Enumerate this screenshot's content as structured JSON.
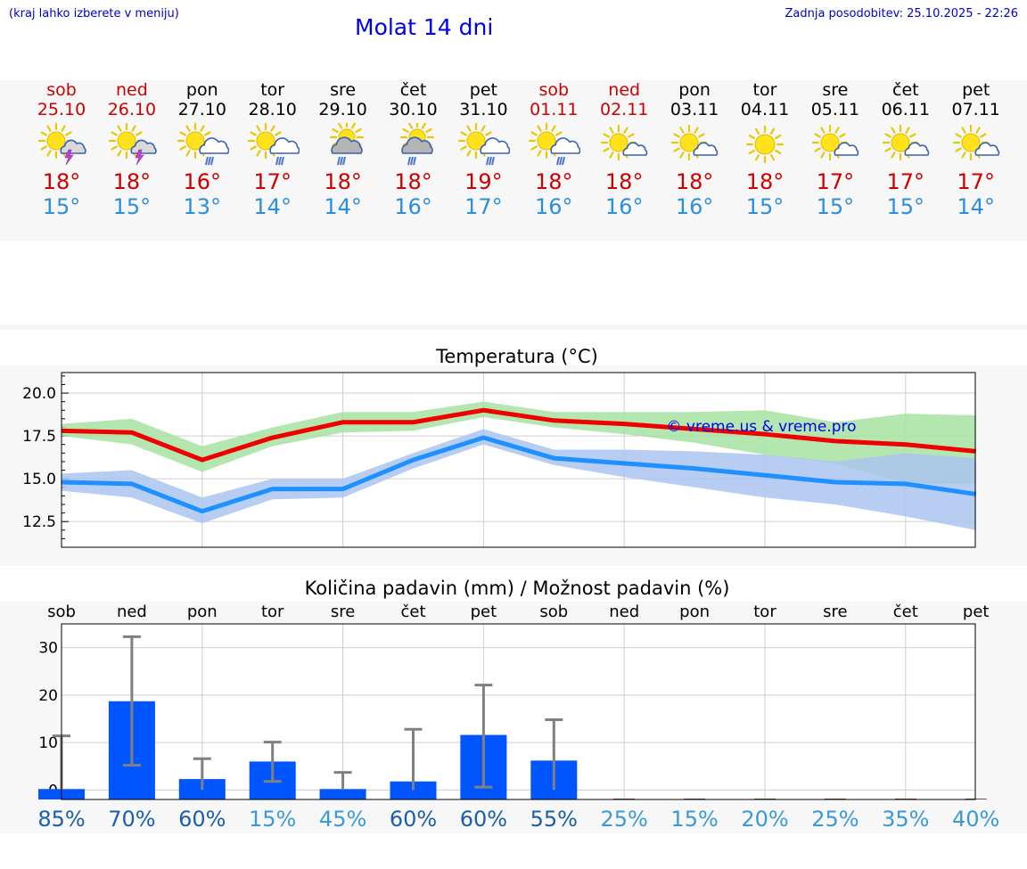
{
  "header": {
    "hint": "(kraj lahko izberete v meniju)",
    "title": "Molat 14 dni",
    "updated": "Zadnja posodobitev: 25.10.2025 - 22:26"
  },
  "days": [
    {
      "name": "sob",
      "date": "25.10",
      "max": "18°",
      "min": "15°",
      "icon": "sun-thunder-icon",
      "weekend": true
    },
    {
      "name": "ned",
      "date": "26.10",
      "max": "18°",
      "min": "15°",
      "icon": "sun-thunder-icon",
      "weekend": true
    },
    {
      "name": "pon",
      "date": "27.10",
      "max": "16°",
      "min": "13°",
      "icon": "sun-cloud-rain-icon",
      "weekend": false
    },
    {
      "name": "tor",
      "date": "28.10",
      "max": "17°",
      "min": "14°",
      "icon": "sun-cloud-rain-icon",
      "weekend": false
    },
    {
      "name": "sre",
      "date": "29.10",
      "max": "18°",
      "min": "14°",
      "icon": "cloud-rain-icon",
      "weekend": false
    },
    {
      "name": "čet",
      "date": "30.10",
      "max": "18°",
      "min": "16°",
      "icon": "cloud-rain-icon",
      "weekend": false
    },
    {
      "name": "pet",
      "date": "31.10",
      "max": "19°",
      "min": "17°",
      "icon": "sun-cloud-rain-icon",
      "weekend": false
    },
    {
      "name": "sob",
      "date": "01.11",
      "max": "18°",
      "min": "16°",
      "icon": "sun-cloud-rain-icon",
      "weekend": true
    },
    {
      "name": "ned",
      "date": "02.11",
      "max": "18°",
      "min": "16°",
      "icon": "sun-cloud-icon",
      "weekend": true
    },
    {
      "name": "pon",
      "date": "03.11",
      "max": "18°",
      "min": "16°",
      "icon": "sun-cloud-icon",
      "weekend": false
    },
    {
      "name": "tor",
      "date": "04.11",
      "max": "18°",
      "min": "15°",
      "icon": "sun-icon",
      "weekend": false
    },
    {
      "name": "sre",
      "date": "05.11",
      "max": "17°",
      "min": "15°",
      "icon": "sun-cloud-icon",
      "weekend": false
    },
    {
      "name": "čet",
      "date": "06.11",
      "max": "17°",
      "min": "15°",
      "icon": "sun-cloud-icon",
      "weekend": false
    },
    {
      "name": "pet",
      "date": "07.11",
      "max": "17°",
      "min": "14°",
      "icon": "sun-cloud-icon",
      "weekend": false
    }
  ],
  "colors": {
    "max": "#ee0000",
    "min": "#1e90ff",
    "max_band": "#a6e3a1",
    "min_band": "#aac4f0",
    "bar": "#0055ff",
    "error": "#808080",
    "watermark": "#0000ee"
  },
  "chart_data": [
    {
      "type": "line",
      "title": "Temperatura (°C)",
      "x": [
        "25.10",
        "26.10",
        "27.10",
        "28.10",
        "29.10",
        "30.10",
        "31.10",
        "01.11",
        "02.11",
        "03.11",
        "04.11",
        "05.11",
        "06.11",
        "07.11"
      ],
      "ylim": [
        11,
        21.2
      ],
      "yticks": [
        "12.5",
        "15.0",
        "17.5",
        "20.0"
      ],
      "grid": true,
      "watermark": "© vreme.us & vreme.pro",
      "series": [
        {
          "key": "max",
          "values": [
            17.8,
            17.7,
            16.1,
            17.4,
            18.3,
            18.3,
            19.0,
            18.4,
            18.2,
            17.9,
            17.6,
            17.2,
            17.0,
            16.6
          ],
          "low": [
            17.5,
            17.0,
            15.4,
            16.9,
            17.7,
            17.8,
            18.6,
            18.0,
            17.6,
            17.1,
            16.4,
            15.9,
            14.7,
            14.7
          ],
          "high": [
            18.2,
            18.5,
            16.9,
            18.0,
            18.9,
            18.9,
            19.5,
            18.9,
            18.9,
            18.9,
            19.0,
            18.3,
            18.8,
            18.7
          ]
        },
        {
          "key": "min",
          "values": [
            14.8,
            14.7,
            13.1,
            14.4,
            14.4,
            16.1,
            17.4,
            16.2,
            15.9,
            15.6,
            15.2,
            14.8,
            14.7,
            14.1
          ],
          "low": [
            14.3,
            13.9,
            12.4,
            13.8,
            13.9,
            15.6,
            17.0,
            15.8,
            15.1,
            14.5,
            13.9,
            13.5,
            12.8,
            12.0
          ],
          "high": [
            15.3,
            15.5,
            13.9,
            15.0,
            15.0,
            16.5,
            17.9,
            16.7,
            16.7,
            16.6,
            16.4,
            16.0,
            16.5,
            16.2
          ]
        }
      ]
    },
    {
      "type": "bar",
      "title": "Količina padavin (mm) / Možnost padavin (%)",
      "categories": [
        "sob",
        "ned",
        "pon",
        "tor",
        "sre",
        "čet",
        "pet",
        "sob",
        "ned",
        "pon",
        "tor",
        "sre",
        "čet",
        "pet"
      ],
      "values": [
        0.2,
        18.7,
        2.3,
        6.0,
        0.2,
        1.8,
        11.6,
        6.2,
        0,
        0,
        0,
        0,
        0,
        0
      ],
      "error_high": [
        11.4,
        32.3,
        6.6,
        10.1,
        3.7,
        12.8,
        22.1,
        14.8,
        0,
        0,
        0,
        0,
        0,
        0
      ],
      "error_low": [
        0,
        5.2,
        0,
        1.8,
        0,
        0,
        0.6,
        0,
        0,
        0,
        0,
        0,
        0,
        0
      ],
      "ylim": [
        -2,
        35
      ],
      "yticks": [
        "0",
        "10",
        "20",
        "30"
      ],
      "grid": true,
      "probability": [
        "85%",
        "70%",
        "60%",
        "15%",
        "45%",
        "60%",
        "60%",
        "55%",
        "25%",
        "15%",
        "20%",
        "25%",
        "35%",
        "40%"
      ]
    }
  ]
}
